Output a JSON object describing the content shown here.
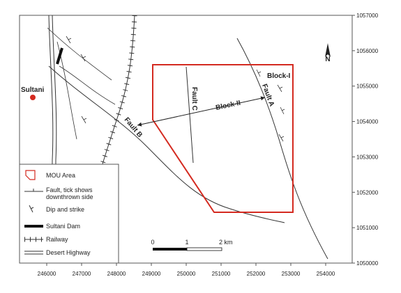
{
  "map": {
    "labels": {
      "sultani": "Sultani",
      "fault_a": "Fault A",
      "fault_b": "Fault B",
      "fault_c": "Fault C",
      "block_i": "Block-I",
      "block_ii": "Block-II",
      "north": "N"
    },
    "x_ticks": [
      246000,
      247000,
      248000,
      249000,
      250000,
      251000,
      252000,
      253000,
      254000
    ],
    "y_ticks": [
      1057000,
      1056000,
      1055000,
      1054000,
      1053000,
      1052000,
      1051000,
      1050000
    ],
    "scale_bar": [
      "0",
      "1",
      "2 km"
    ],
    "legend": [
      "MOU Area",
      "Fault, tick shows downthrown side",
      "Dip and strike",
      "Sultani Dam",
      "Railway",
      "Desert Highway"
    ]
  }
}
